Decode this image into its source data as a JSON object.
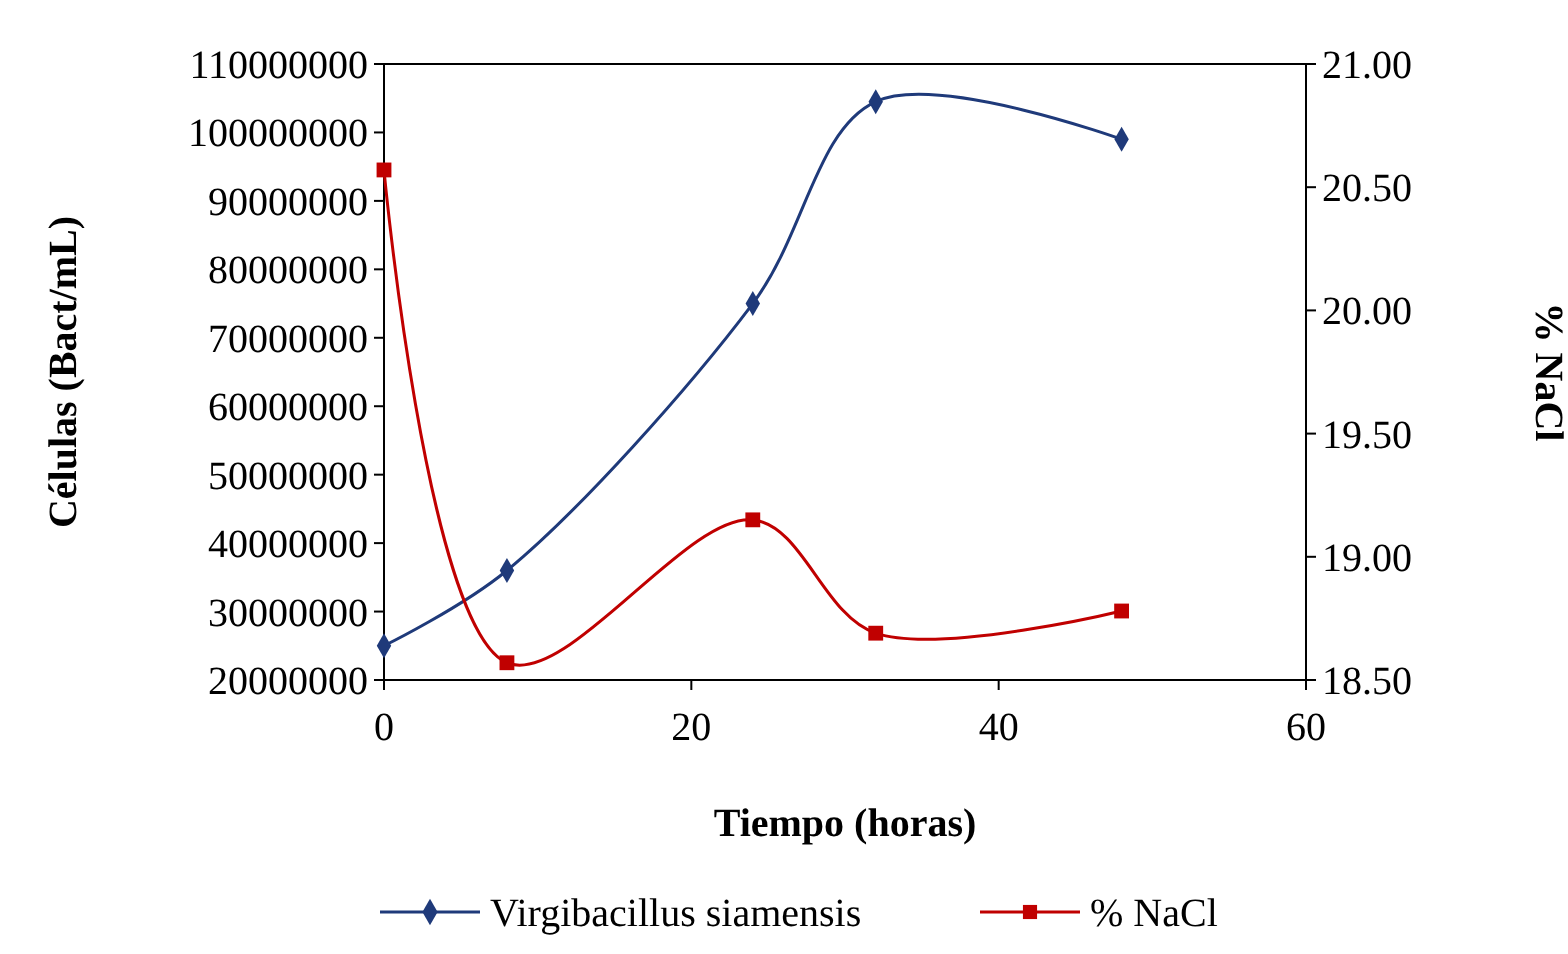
{
  "chart_data": {
    "type": "line",
    "xlabel": "Tiempo (horas)",
    "ylabel": "Células (Bact/mL)",
    "y2label": "% NaCl",
    "xlim": [
      0,
      60
    ],
    "xticks": [
      0,
      20,
      40,
      60
    ],
    "ylim": [
      20000000,
      110000000
    ],
    "yticks": [
      20000000,
      30000000,
      40000000,
      50000000,
      60000000,
      70000000,
      80000000,
      90000000,
      100000000,
      110000000
    ],
    "y2lim": [
      18.5,
      21
    ],
    "y2ticks": [
      {
        "value": 18.5,
        "label": "18.50"
      },
      {
        "value": 19,
        "label": "19.00"
      },
      {
        "value": 19.5,
        "label": "19.50"
      },
      {
        "value": 20,
        "label": "20.00"
      },
      {
        "value": 20.5,
        "label": "20.50"
      },
      {
        "value": 21,
        "label": "21.00"
      }
    ],
    "grid": false,
    "legend": "bottom",
    "series": [
      {
        "name": "Virgibacillus siamensis",
        "color": "#1f3a7a",
        "marker": "diamond",
        "x": [
          0,
          8,
          24,
          32,
          48
        ],
        "values": [
          25000000,
          36000000,
          75000000,
          104500000,
          99000000
        ]
      },
      {
        "name": "% NaCl",
        "color": "#c00000",
        "marker": "square",
        "axis": "y2",
        "x": [
          0,
          8,
          24,
          32,
          48
        ],
        "values": [
          20.57,
          18.57,
          19.15,
          18.69,
          18.78
        ]
      }
    ]
  }
}
